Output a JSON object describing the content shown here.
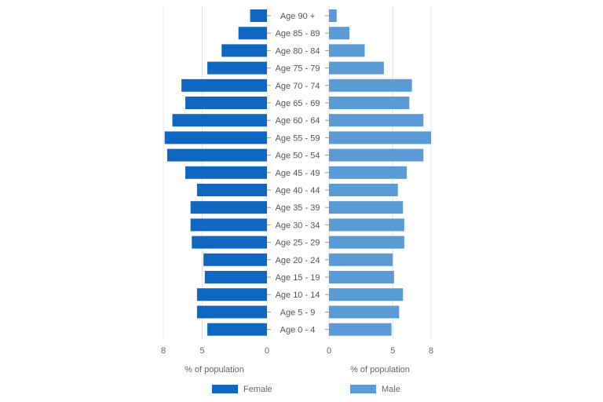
{
  "chart_data": {
    "type": "bar",
    "orientation": "horizontal",
    "layout": "population-pyramid",
    "categories": [
      "Age 90 +",
      "Age 85 - 89",
      "Age 80 - 84",
      "Age 75 - 79",
      "Age 70 - 74",
      "Age 65 - 69",
      "Age 60 - 64",
      "Age 55 - 59",
      "Age 50 - 54",
      "Age 45 - 49",
      "Age 40 - 44",
      "Age 35 - 39",
      "Age 30 - 34",
      "Age 25 - 29",
      "Age 20 - 24",
      "Age 15 - 19",
      "Age 10 - 14",
      "Age 5 - 9",
      "Age 0 - 4"
    ],
    "series": [
      {
        "name": "Female",
        "side": "left",
        "color": "#0f67c2",
        "values": [
          1.3,
          2.2,
          3.5,
          4.6,
          6.6,
          6.3,
          7.3,
          7.9,
          7.7,
          6.3,
          5.4,
          5.9,
          5.9,
          5.8,
          4.9,
          4.8,
          5.4,
          5.4,
          4.6
        ]
      },
      {
        "name": "Male",
        "side": "right",
        "color": "#5b9bd5",
        "values": [
          0.6,
          1.6,
          2.8,
          4.3,
          6.5,
          6.3,
          7.4,
          8.0,
          7.4,
          6.1,
          5.4,
          5.8,
          5.9,
          5.9,
          5.0,
          5.1,
          5.8,
          5.5,
          4.9
        ]
      }
    ],
    "xlim": [
      0,
      8
    ],
    "x_ticks_left": [
      "8",
      "5",
      "0"
    ],
    "x_ticks_right": [
      "0",
      "5",
      "8"
    ],
    "x_tick_values_left": [
      8,
      5,
      0
    ],
    "x_tick_values_right": [
      0,
      5,
      8
    ],
    "xlabel_left": "% of population",
    "xlabel_right": "% of population",
    "grid": true,
    "legend_position": "bottom"
  }
}
